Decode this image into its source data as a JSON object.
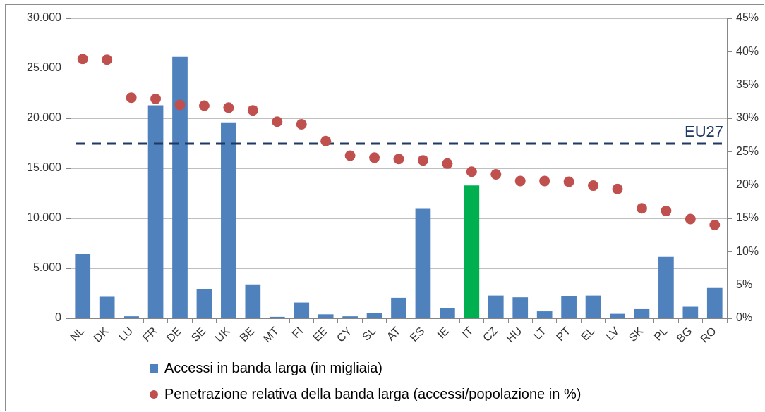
{
  "chart_data": {
    "type": "bar",
    "categories": [
      "NL",
      "DK",
      "LU",
      "FR",
      "DE",
      "SE",
      "UK",
      "BE",
      "MT",
      "FI",
      "EE",
      "CY",
      "SL",
      "AT",
      "ES",
      "IE",
      "IT",
      "CZ",
      "HU",
      "LT",
      "PT",
      "EL",
      "LV",
      "SK",
      "PL",
      "BG",
      "RO"
    ],
    "series": [
      {
        "name": "Accessi in banda larga (in migliaia)",
        "color": "#4f81bd",
        "colors": [
          "#4f81bd",
          "#4f81bd",
          "#4f81bd",
          "#4f81bd",
          "#4f81bd",
          "#4f81bd",
          "#4f81bd",
          "#4f81bd",
          "#4f81bd",
          "#4f81bd",
          "#4f81bd",
          "#4f81bd",
          "#4f81bd",
          "#4f81bd",
          "#4f81bd",
          "#4f81bd",
          "#00b050",
          "#4f81bd",
          "#4f81bd",
          "#4f81bd",
          "#4f81bd",
          "#4f81bd",
          "#4f81bd",
          "#4f81bd",
          "#4f81bd",
          "#4f81bd",
          "#4f81bd"
        ],
        "values": [
          6450,
          2150,
          200,
          21300,
          26150,
          2950,
          19600,
          3400,
          150,
          1580,
          400,
          200,
          500,
          2050,
          10950,
          1050,
          13300,
          2280,
          2100,
          700,
          2230,
          2280,
          450,
          920,
          6150,
          1160,
          3050
        ]
      },
      {
        "name": "Penetrazione relativa della banda larga (accessi/popolazione in %)",
        "type": "scatter",
        "axis": "y2",
        "color": "#c0504d",
        "values": [
          38.9,
          38.8,
          33.1,
          32.9,
          32.0,
          31.9,
          31.6,
          31.2,
          29.5,
          29.1,
          26.6,
          24.4,
          24.1,
          23.9,
          23.7,
          23.2,
          22.0,
          21.6,
          20.6,
          20.6,
          20.5,
          19.9,
          19.4,
          16.5,
          16.1,
          14.9,
          14.0
        ]
      }
    ],
    "ylim": [
      0,
      30000
    ],
    "yticks": [
      0,
      {
        "value": 5000,
        "label": "5.000"
      },
      {
        "value": 10000,
        "label": "10.000"
      },
      {
        "value": 15000,
        "label": "15.000"
      },
      {
        "value": 20000,
        "label": "20.000"
      },
      {
        "value": 25000,
        "label": "25.000"
      },
      {
        "value": 30000,
        "label": "30.000"
      }
    ],
    "y2lim": [
      0,
      45
    ],
    "y2ticks": [
      {
        "value": 0,
        "label": "0%"
      },
      {
        "value": 5,
        "label": "5%"
      },
      {
        "value": 10,
        "label": "10%"
      },
      {
        "value": 15,
        "label": "15%"
      },
      {
        "value": 20,
        "label": "20%"
      },
      {
        "value": 25,
        "label": "25%"
      },
      {
        "value": 30,
        "label": "30%"
      },
      {
        "value": 35,
        "label": "35%"
      },
      {
        "value": 40,
        "label": "40%"
      },
      {
        "value": 45,
        "label": "45%"
      }
    ],
    "ref_lines": [
      {
        "axis": "y2",
        "value": 26.2,
        "label": "EU27",
        "color": "#1f3864",
        "line_style": "dashed"
      }
    ],
    "grid": "y",
    "legend": "bottom",
    "marker": "circle"
  }
}
